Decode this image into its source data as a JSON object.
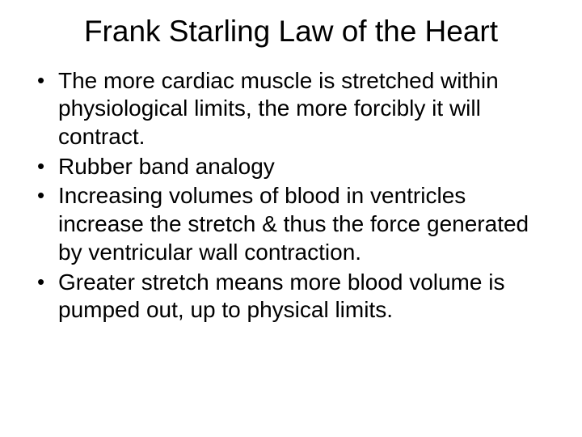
{
  "slide": {
    "title": "Frank Starling Law of the Heart",
    "title_fontsize": 37,
    "title_align": "center",
    "body_fontsize": 28,
    "font_family": "Comic Sans MS",
    "text_color": "#000000",
    "background_color": "#ffffff",
    "bullets": [
      "The more cardiac muscle is stretched within physiological limits, the more forcibly it will contract.",
      "Rubber band analogy",
      "Increasing volumes of blood in ventricles increase the stretch & thus the force generated by ventricular wall contraction.",
      "Greater stretch means more blood volume is pumped out, up to physical limits."
    ]
  }
}
